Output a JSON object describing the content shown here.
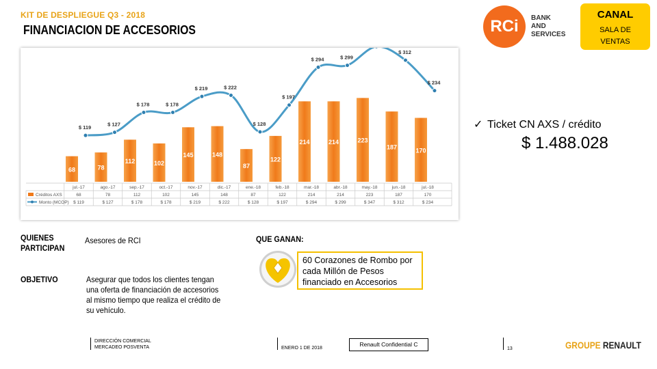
{
  "header": {
    "kit": "KIT DE DESPLIEGUE Q3 - 2018",
    "title": "FINANCIACION DE ACCESORIOS"
  },
  "logo": {
    "mark": "RCi",
    "text": "BANK\nAND\nSERVICES",
    "color": "#f26b1d"
  },
  "canal": {
    "title": "CANAL",
    "subtitle": "SALA DE\nVENTAS",
    "color": "#ffcc00"
  },
  "ticket": {
    "check": "✓",
    "label": "Ticket CN AXS / crédito",
    "value": "$ 1.488.028"
  },
  "quienes": {
    "label": "QUIENES\nPARTICIPAN",
    "text": "Asesores de RCI"
  },
  "objetivo": {
    "label": "OBJETIVO",
    "text": "Asegurar que todos los clientes tengan una oferta de financiación de accesorios al mismo tiempo que realiza el crédito de su vehículo."
  },
  "que_ganan": {
    "label": "QUE GANAN:",
    "prize": "60 Corazones de Rombo por cada Millón de Pesos financiado en Accesorios"
  },
  "footer": {
    "dept": "DIRECCIÓN COMERCIAL\nMERCADEO POSVENTA",
    "date": "ENERO 1 DE 2018",
    "confidential": "Renault Confidential C",
    "page": "13",
    "brand1": "GROUPE ",
    "brand2": "RENAULT"
  },
  "chart_data": {
    "type": "bar",
    "categories": [
      "jul.-17",
      "ago.-17",
      "sep.-17",
      "oct.-17",
      "nov.-17",
      "dic.-17",
      "ene.-18",
      "feb.-18",
      "mar.-18",
      "abr.-18",
      "may.-18",
      "jun.-18",
      "jul.-18"
    ],
    "series": [
      {
        "name": "Créditos AXS",
        "type": "bar",
        "values": [
          68,
          78,
          112,
          102,
          145,
          148,
          87,
          122,
          214,
          214,
          223,
          187,
          170
        ],
        "color": "#f07a1a"
      },
      {
        "name": "Monto (MCOP)",
        "type": "line",
        "values": [
          119,
          127,
          178,
          178,
          219,
          222,
          128,
          197,
          294,
          299,
          347,
          312,
          234
        ],
        "prefix": "$ ",
        "color": "#4a9cc7"
      }
    ],
    "grid": false,
    "legend": "data-table"
  }
}
